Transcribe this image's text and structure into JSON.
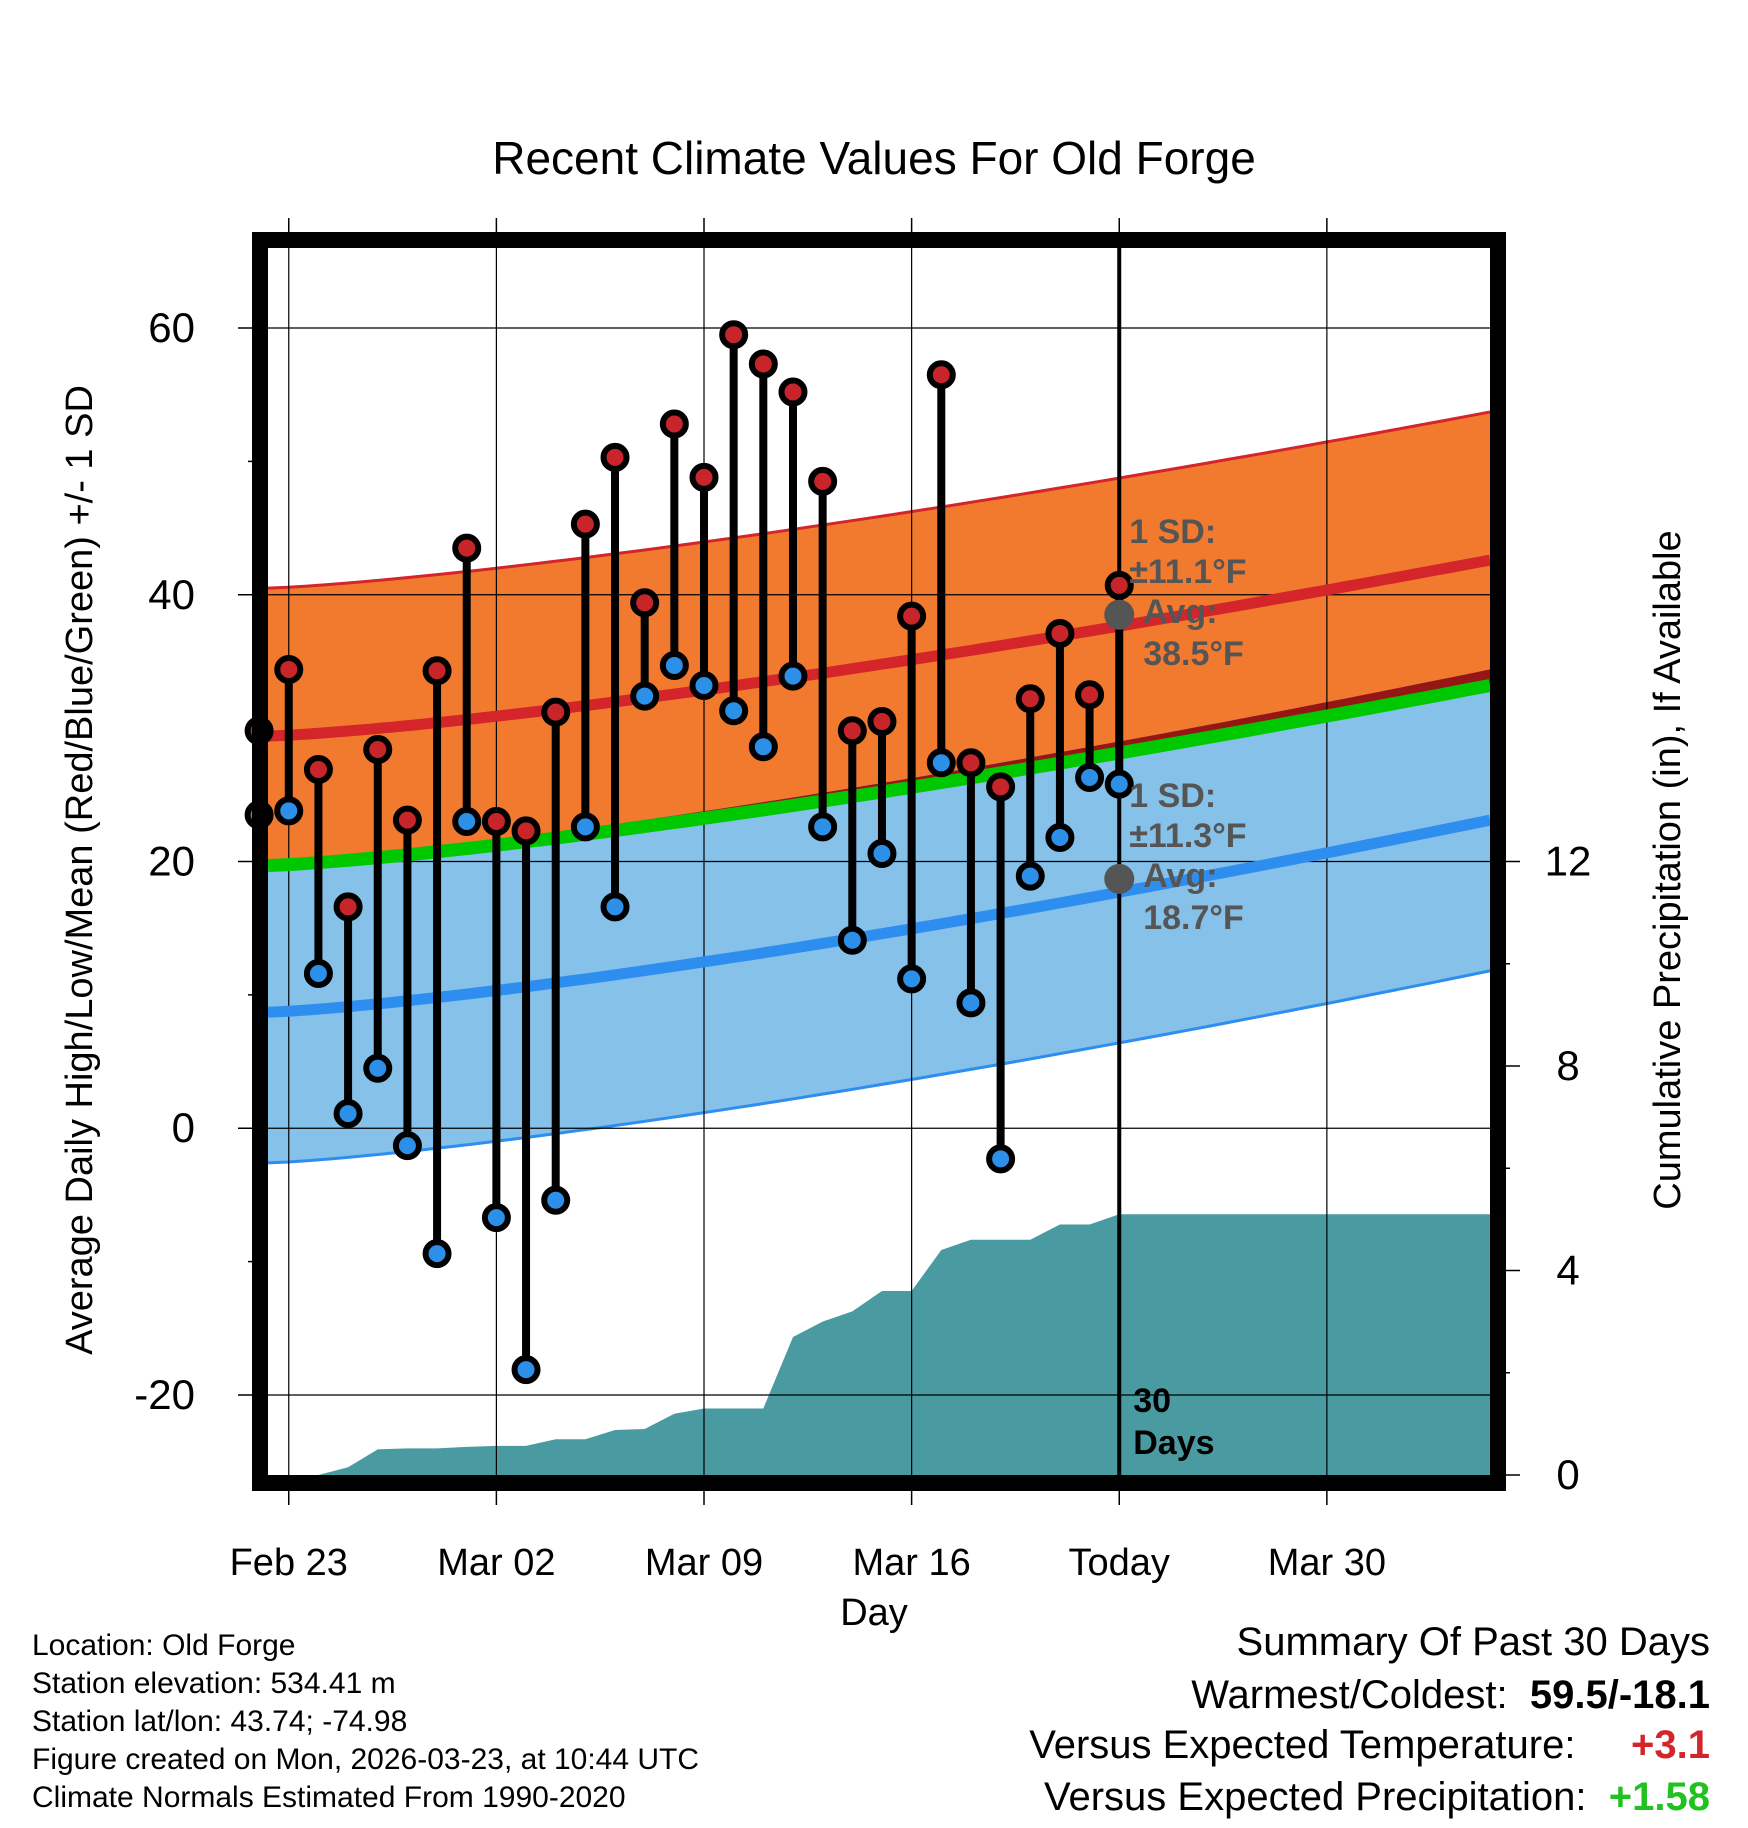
{
  "title": "Recent Climate Values For Old Forge",
  "chart_data": {
    "type": "line",
    "title": "Recent Climate Values For Old Forge",
    "xlabel": "Day",
    "ylabel": "Average Daily High/Low/Mean (Red/Blue/Green) +/- 1 SD",
    "ylabel_right": "Cumulative Precipitation (in), If Available",
    "ylim": [
      -26,
      66
    ],
    "ylim_right": [
      0,
      24
    ],
    "y_ticks": [
      -20,
      0,
      20,
      40,
      60
    ],
    "y_right_ticks": [
      0,
      4,
      8,
      12
    ],
    "x_range_days": [
      -28.7,
      12.5
    ],
    "x_ticks": [
      {
        "day": -28,
        "label": "Feb 23"
      },
      {
        "day": -21,
        "label": "Mar 02"
      },
      {
        "day": -14,
        "label": "Mar 09"
      },
      {
        "day": -7,
        "label": "Mar 16"
      },
      {
        "day": 0,
        "label": "Today"
      },
      {
        "day": 7,
        "label": "Mar 30"
      }
    ],
    "series": [
      {
        "name": "Observed High",
        "color": "#c8252b",
        "values": [
          29.8,
          34.4,
          26.9,
          16.6,
          28.4,
          23.1,
          34.3,
          43.5,
          23.0,
          22.3,
          31.2,
          45.3,
          50.3,
          39.4,
          52.8,
          48.8,
          59.5,
          57.3,
          55.2,
          48.5,
          29.8,
          30.5,
          38.4,
          56.5,
          27.4,
          25.6,
          32.2,
          37.1,
          32.5,
          40.7
        ]
      },
      {
        "name": "Observed Low",
        "color": "#2c8fe8",
        "values": [
          23.5,
          23.8,
          11.6,
          1.1,
          4.5,
          -1.3,
          -9.4,
          23.0,
          -6.7,
          -18.1,
          -5.4,
          22.6,
          16.6,
          32.4,
          34.7,
          33.2,
          31.3,
          28.6,
          33.9,
          22.6,
          14.1,
          20.6,
          11.2,
          27.4,
          9.4,
          -2.3,
          18.9,
          21.8,
          26.3,
          25.8
        ]
      },
      {
        "name": "Normal High",
        "color": "#d4252b",
        "start": 29.4,
        "end": 42.6,
        "sd": 11.1
      },
      {
        "name": "Normal Low",
        "color": "#2e8ef0",
        "start": 8.7,
        "end": 23.1,
        "sd": 11.3
      },
      {
        "name": "Normal Mean",
        "color": "#00c800",
        "start": 19.7,
        "end": 33.2
      },
      {
        "name": "Cumulative Precipitation (in)",
        "values": [
          0,
          0,
          0,
          0.15,
          0.5,
          0.52,
          0.52,
          0.55,
          0.57,
          0.57,
          0.7,
          0.7,
          0.88,
          0.9,
          1.2,
          1.3,
          1.3,
          1.3,
          2.7,
          3.0,
          3.2,
          3.6,
          3.6,
          4.4,
          4.6,
          4.6,
          4.6,
          4.9,
          4.9,
          5.1,
          5.1,
          5.1,
          5.1,
          5.1,
          5.1,
          5.1,
          5.1,
          5.1,
          5.1,
          5.1,
          5.1
        ]
      }
    ],
    "annotations": {
      "high": {
        "sd_label": "1 SD:",
        "sd_value": "±11.1°F",
        "avg_label": "Avg:",
        "avg_value": "38.5°F",
        "avg": 38.5
      },
      "low": {
        "sd_label": "1 SD:",
        "sd_value": "±11.3°F",
        "avg_label": "Avg:",
        "avg_value": "18.7°F",
        "avg": 18.7
      },
      "window": "30 Days"
    }
  },
  "station": {
    "location": "Location: Old Forge",
    "elevation": "Station elevation: 534.41 m",
    "latlon": "Station lat/lon: 43.74; -74.98",
    "created": "Figure created on Mon, 2026-03-23, at 10:44 UTC",
    "normals": "Climate Normals Estimated From 1990-2020"
  },
  "summary": {
    "title": "Summary Of Past 30 Days",
    "warm_cold_label": "Warmest/Coldest:",
    "warm_cold_value": "59.5/-18.1",
    "temp_label": "Versus Expected Temperature:",
    "temp_value": "+3.1",
    "precip_label": "Versus Expected Precipitation:",
    "precip_value": "+1.58"
  },
  "colors": {
    "high_band": "#f27a2e",
    "low_band": "#85c1e8",
    "overlap_band": "#961515",
    "precip": "#4a9aa2",
    "temp_positive": "#d4252b",
    "precip_positive": "#1fc21f",
    "annotation": "#555555"
  }
}
